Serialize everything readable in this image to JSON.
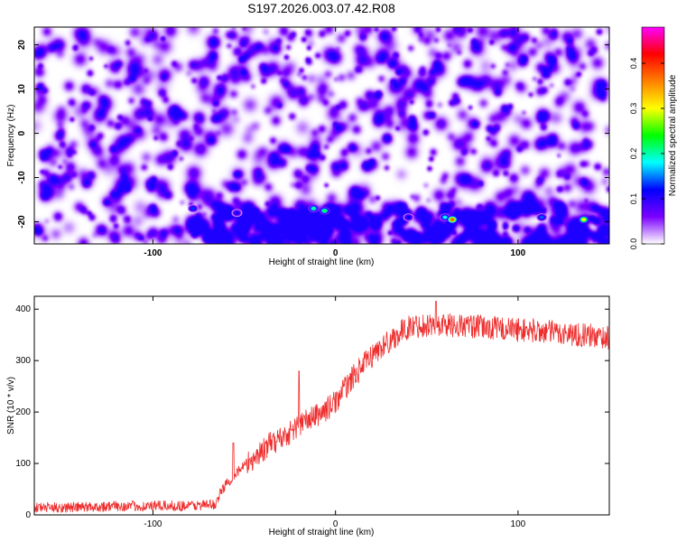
{
  "title": "S197.2026.003.07.42.R08",
  "colors": {
    "snr_line": "#ee2d2d",
    "axis": "#000000",
    "colormap": [
      "#ffffff",
      "#7b00ff",
      "#0000ff",
      "#00ffff",
      "#00ff00",
      "#ffff00",
      "#ff8000",
      "#ff0000",
      "#ff00ff"
    ]
  },
  "chart_data": [
    {
      "type": "heatmap",
      "title": "S197.2026.003.07.42.R08",
      "xlabel": "Height of straight line (km)",
      "ylabel": "Frequency (Hz)",
      "xlim": [
        -165,
        150
      ],
      "ylim": [
        -25,
        24
      ],
      "xticks": [
        -100,
        0,
        100
      ],
      "xtick_labels": [
        "-100",
        "0",
        "100"
      ],
      "yticks": [
        -20,
        -10,
        0,
        10,
        20
      ],
      "ytick_labels": [
        "-20",
        "-10",
        "0",
        "10",
        "20"
      ],
      "background_amplitude": 0.08,
      "band_frequency_range": [
        -22,
        -16
      ],
      "band_x_start": -80,
      "hotspots": [
        {
          "x": -78,
          "y": -17,
          "value": 0.13
        },
        {
          "x": -54,
          "y": -18,
          "value": 0.11
        },
        {
          "x": -12,
          "y": -17,
          "value": 0.2
        },
        {
          "x": -6,
          "y": -17.5,
          "value": 0.22
        },
        {
          "x": 40,
          "y": -19,
          "value": 0.12
        },
        {
          "x": 60,
          "y": -19,
          "value": 0.18
        },
        {
          "x": 64,
          "y": -19.5,
          "value": 0.37
        },
        {
          "x": 113,
          "y": -19,
          "value": 0.14
        },
        {
          "x": 136,
          "y": -19.5,
          "value": 0.3
        }
      ],
      "colorbar": {
        "label": "Normalized spectral amplitude",
        "range": [
          0,
          0.48
        ],
        "ticks": [
          0.0,
          0.1,
          0.2,
          0.3,
          0.4
        ],
        "tick_labels": [
          "0.0",
          "0.1",
          "0.2",
          "0.3",
          "0.4"
        ]
      }
    },
    {
      "type": "line",
      "xlabel": "Height of straight line (km)",
      "ylabel": "SNR (10 * v/v)",
      "xlim": [
        -165,
        150
      ],
      "ylim": [
        0,
        425
      ],
      "xticks": [
        -100,
        0,
        100
      ],
      "xtick_labels": [
        "-100",
        "0",
        "100"
      ],
      "yticks": [
        0,
        100,
        200,
        300,
        400
      ],
      "ytick_labels": [
        "0",
        "100",
        "200",
        "300",
        "400"
      ],
      "noise_amplitude": 15,
      "x": [
        -165,
        -140,
        -120,
        -100,
        -80,
        -66,
        -62,
        -55,
        -45,
        -35,
        -25,
        -18,
        -12,
        -5,
        0,
        10,
        20,
        30,
        40,
        50,
        60,
        80,
        100,
        120,
        140,
        150
      ],
      "y": [
        14,
        15,
        17,
        17,
        18,
        20,
        50,
        80,
        110,
        140,
        160,
        180,
        190,
        205,
        220,
        270,
        310,
        340,
        365,
        370,
        370,
        365,
        360,
        355,
        348,
        345
      ],
      "spikes": [
        {
          "x": -56,
          "y": 140
        },
        {
          "x": -20,
          "y": 280
        },
        {
          "x": 55,
          "y": 415
        }
      ]
    }
  ]
}
